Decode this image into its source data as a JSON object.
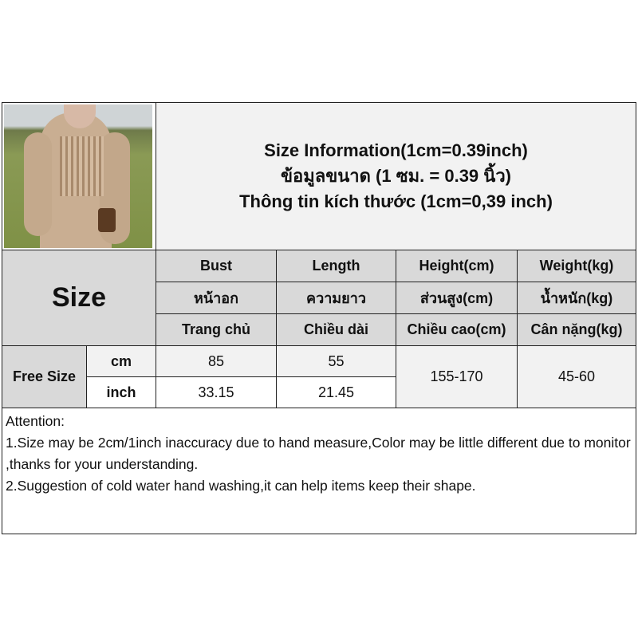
{
  "title_lines": [
    "Size Information(1cm=0.39inch)",
    "ข้อมูลขนาด (1 ซม. = 0.39 นิ้ว)",
    "Thông tin kích thước (1cm=0,39 inch)"
  ],
  "size_label": "Size",
  "headers": [
    [
      "Bust",
      "หน้าอก",
      "Trang chủ"
    ],
    [
      "Length",
      "ความยาว",
      "Chiều dài"
    ],
    [
      "Height(cm)",
      "ส่วนสูง(cm)",
      "Chiều cao(cm)"
    ],
    [
      "Weight(kg)",
      "น้ำหนัก(kg)",
      "Cân nặng(kg)"
    ]
  ],
  "row": {
    "name": "Free Size",
    "units": [
      "cm",
      "inch"
    ],
    "bust": [
      "85",
      "33.15"
    ],
    "length": [
      "55",
      "21.45"
    ],
    "height": "155-170",
    "weight": "45-60"
  },
  "attention": [
    "Attention:",
    "1.Size may be 2cm/1inch inaccuracy due to hand measure,Color may be little different due to monitor ,thanks for your understanding.",
    "2.Suggestion of cold water hand washing,it can help items keep their shape."
  ]
}
